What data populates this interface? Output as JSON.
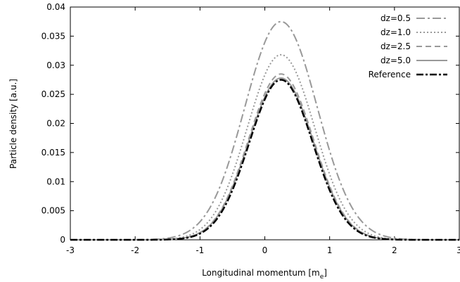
{
  "chart_data": {
    "type": "line",
    "xlabel": "Longitudinal momentum [m",
    "xlabel_sub": "e",
    "xlabel_suffix": "]",
    "ylabel": "Particle density [a.u.]",
    "xlim": [
      -3,
      3
    ],
    "ylim": [
      0,
      0.04
    ],
    "x_ticks": [
      "-3",
      "-2",
      "-1",
      "0",
      "1",
      "2",
      "3"
    ],
    "y_ticks": [
      "0",
      "0.005",
      "0.01",
      "0.015",
      "0.02",
      "0.025",
      "0.03",
      "0.035",
      "0.04"
    ],
    "grid": false,
    "legend_position": "top-right",
    "series": [
      {
        "name": "dz=0.5",
        "peak_x": 0.25,
        "peak_y": 0.0375,
        "width": 0.56,
        "color": "#999999",
        "dash": "dash-dot"
      },
      {
        "name": "dz=1.0",
        "peak_x": 0.25,
        "peak_y": 0.0318,
        "width": 0.52,
        "color": "#999999",
        "dash": "dotted"
      },
      {
        "name": "dz=2.5",
        "peak_x": 0.25,
        "peak_y": 0.0285,
        "width": 0.5,
        "color": "#999999",
        "dash": "dashed"
      },
      {
        "name": "dz=5.0",
        "peak_x": 0.25,
        "peak_y": 0.0278,
        "width": 0.5,
        "color": "#999999",
        "dash": "solid"
      },
      {
        "name": "Reference",
        "peak_x": 0.25,
        "peak_y": 0.0275,
        "width": 0.49,
        "color": "#000000",
        "dash": "dash-dot-bold"
      }
    ]
  }
}
